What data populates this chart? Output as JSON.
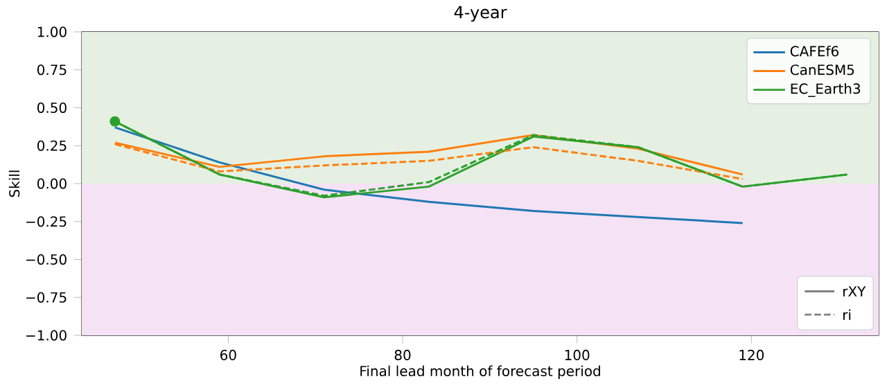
{
  "chart_data": {
    "type": "line",
    "title": "4-year",
    "xlabel": "Final lead month of forecast period",
    "ylabel": "Skill",
    "series": [
      {
        "name": "CAFEf6",
        "color": "#1f77b4",
        "line_style": "solid",
        "x": [
          47,
          59,
          71,
          83,
          95,
          107,
          119
        ],
        "values": [
          0.37,
          0.14,
          -0.04,
          -0.12,
          -0.18,
          -0.22,
          -0.26
        ]
      },
      {
        "name": "CanESM5",
        "color": "#ff7f0e",
        "line_style": "solid",
        "x": [
          47,
          59,
          71,
          83,
          95,
          107,
          119
        ],
        "values": [
          0.27,
          0.11,
          0.18,
          0.21,
          0.32,
          0.23,
          0.06
        ]
      },
      {
        "name": "EC_Earth3",
        "color": "#2ca02c",
        "line_style": "solid",
        "x": [
          47,
          59,
          71,
          83,
          95,
          107,
          119,
          131
        ],
        "values": [
          0.41,
          0.06,
          -0.09,
          -0.02,
          0.31,
          0.24,
          -0.02,
          0.06
        ]
      },
      {
        "color": "#ff7f0e",
        "line_style": "dashed",
        "x": [
          47,
          59,
          71,
          83,
          95,
          107,
          119
        ],
        "values": [
          0.26,
          0.08,
          0.12,
          0.15,
          0.24,
          0.15,
          0.03
        ]
      },
      {
        "color": "#2ca02c",
        "line_style": "dashed",
        "x": [
          47,
          59,
          71,
          83,
          95,
          107,
          119,
          131
        ],
        "values": [
          0.41,
          0.06,
          -0.08,
          0.01,
          0.32,
          0.24,
          -0.02,
          0.06
        ]
      },
      {
        "type": "scatter",
        "color": "#2ca02c",
        "marker": "circle",
        "x": [
          47
        ],
        "values": [
          0.41
        ]
      }
    ],
    "bands": [
      {
        "axis": "y",
        "from": 0,
        "to": 1,
        "color": "#e5f0e2"
      },
      {
        "axis": "y",
        "from": -1,
        "to": 0,
        "color": "#f6e2f5"
      }
    ],
    "annotations": [
      "rXY",
      "ri"
    ],
    "xlim": [
      43.2,
      134.6
    ],
    "ylim": [
      -1,
      1
    ],
    "xticks": [
      60,
      80,
      100,
      120
    ],
    "yticks": [
      {
        "value": -1,
        "label": "−1.00"
      },
      {
        "value": -0.75,
        "label": "−0.75"
      },
      {
        "value": -0.5,
        "label": "−0.50"
      },
      {
        "value": -0.25,
        "label": "−0.25"
      },
      {
        "value": 0,
        "label": "0.00"
      },
      {
        "value": 0.25,
        "label": "0.25"
      },
      {
        "value": 0.5,
        "label": "0.50"
      },
      {
        "value": 0.75,
        "label": "0.75"
      },
      {
        "value": 1,
        "label": "1.00"
      }
    ],
    "grid": true,
    "legend": "top right",
    "marker": "none"
  }
}
